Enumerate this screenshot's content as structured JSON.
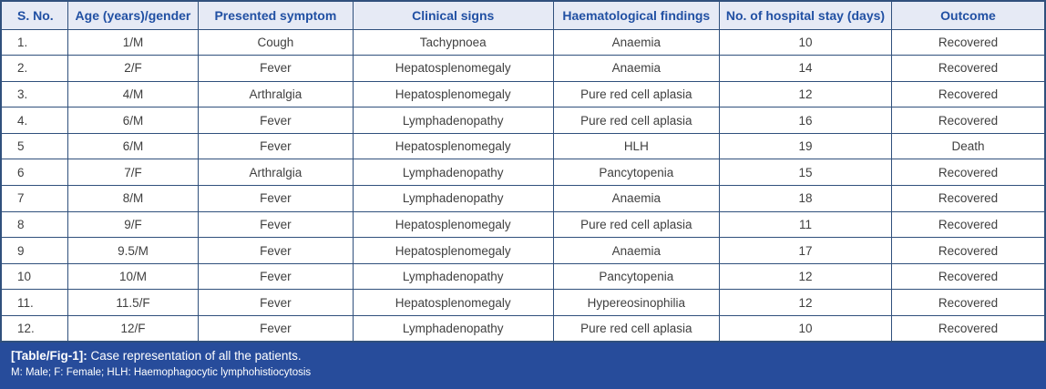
{
  "table": {
    "columns": [
      "S. No.",
      "Age (years)/gender",
      "Presented symptom",
      "Clinical signs",
      "Haematological findings",
      "No. of hospital stay (days)",
      "Outcome"
    ],
    "rows": [
      [
        "1.",
        "1/M",
        "Cough",
        "Tachypnoea",
        "Anaemia",
        "10",
        "Recovered"
      ],
      [
        "2.",
        "2/F",
        "Fever",
        "Hepatosplenomegaly",
        "Anaemia",
        "14",
        "Recovered"
      ],
      [
        "3.",
        "4/M",
        "Arthralgia",
        "Hepatosplenomegaly",
        "Pure red cell aplasia",
        "12",
        "Recovered"
      ],
      [
        "4.",
        "6/M",
        "Fever",
        "Lymphadenopathy",
        "Pure red cell aplasia",
        "16",
        "Recovered"
      ],
      [
        "5",
        "6/M",
        "Fever",
        "Hepatosplenomegaly",
        "HLH",
        "19",
        "Death"
      ],
      [
        "6",
        "7/F",
        "Arthralgia",
        "Lymphadenopathy",
        "Pancytopenia",
        "15",
        "Recovered"
      ],
      [
        "7",
        "8/M",
        "Fever",
        "Lymphadenopathy",
        "Anaemia",
        "18",
        "Recovered"
      ],
      [
        "8",
        "9/F",
        "Fever",
        "Hepatosplenomegaly",
        "Pure red cell aplasia",
        "11",
        "Recovered"
      ],
      [
        "9",
        "9.5/M",
        "Fever",
        "Hepatosplenomegaly",
        "Anaemia",
        "17",
        "Recovered"
      ],
      [
        "10",
        "10/M",
        "Fever",
        "Lymphadenopathy",
        "Pancytopenia",
        "12",
        "Recovered"
      ],
      [
        "11.",
        "11.5/F",
        "Fever",
        "Hepatosplenomegaly",
        "Hypereosinophilia",
        "12",
        "Recovered"
      ],
      [
        "12.",
        "12/F",
        "Fever",
        "Lymphadenopathy",
        "Pure red cell aplasia",
        "10",
        "Recovered"
      ]
    ]
  },
  "caption": {
    "label": "[Table/Fig-1]:",
    "text": "Case representation of all the patients.",
    "abbreviations": "M: Male; F: Female; HLH: Haemophagocytic lymphohistiocytosis"
  },
  "colors": {
    "header_bg": "#e6eaf5",
    "header_text": "#2150a3",
    "border": "#30507c",
    "caption_bg": "#274c9b",
    "caption_text": "#ffffff",
    "body_text": "#3f3f3f"
  }
}
